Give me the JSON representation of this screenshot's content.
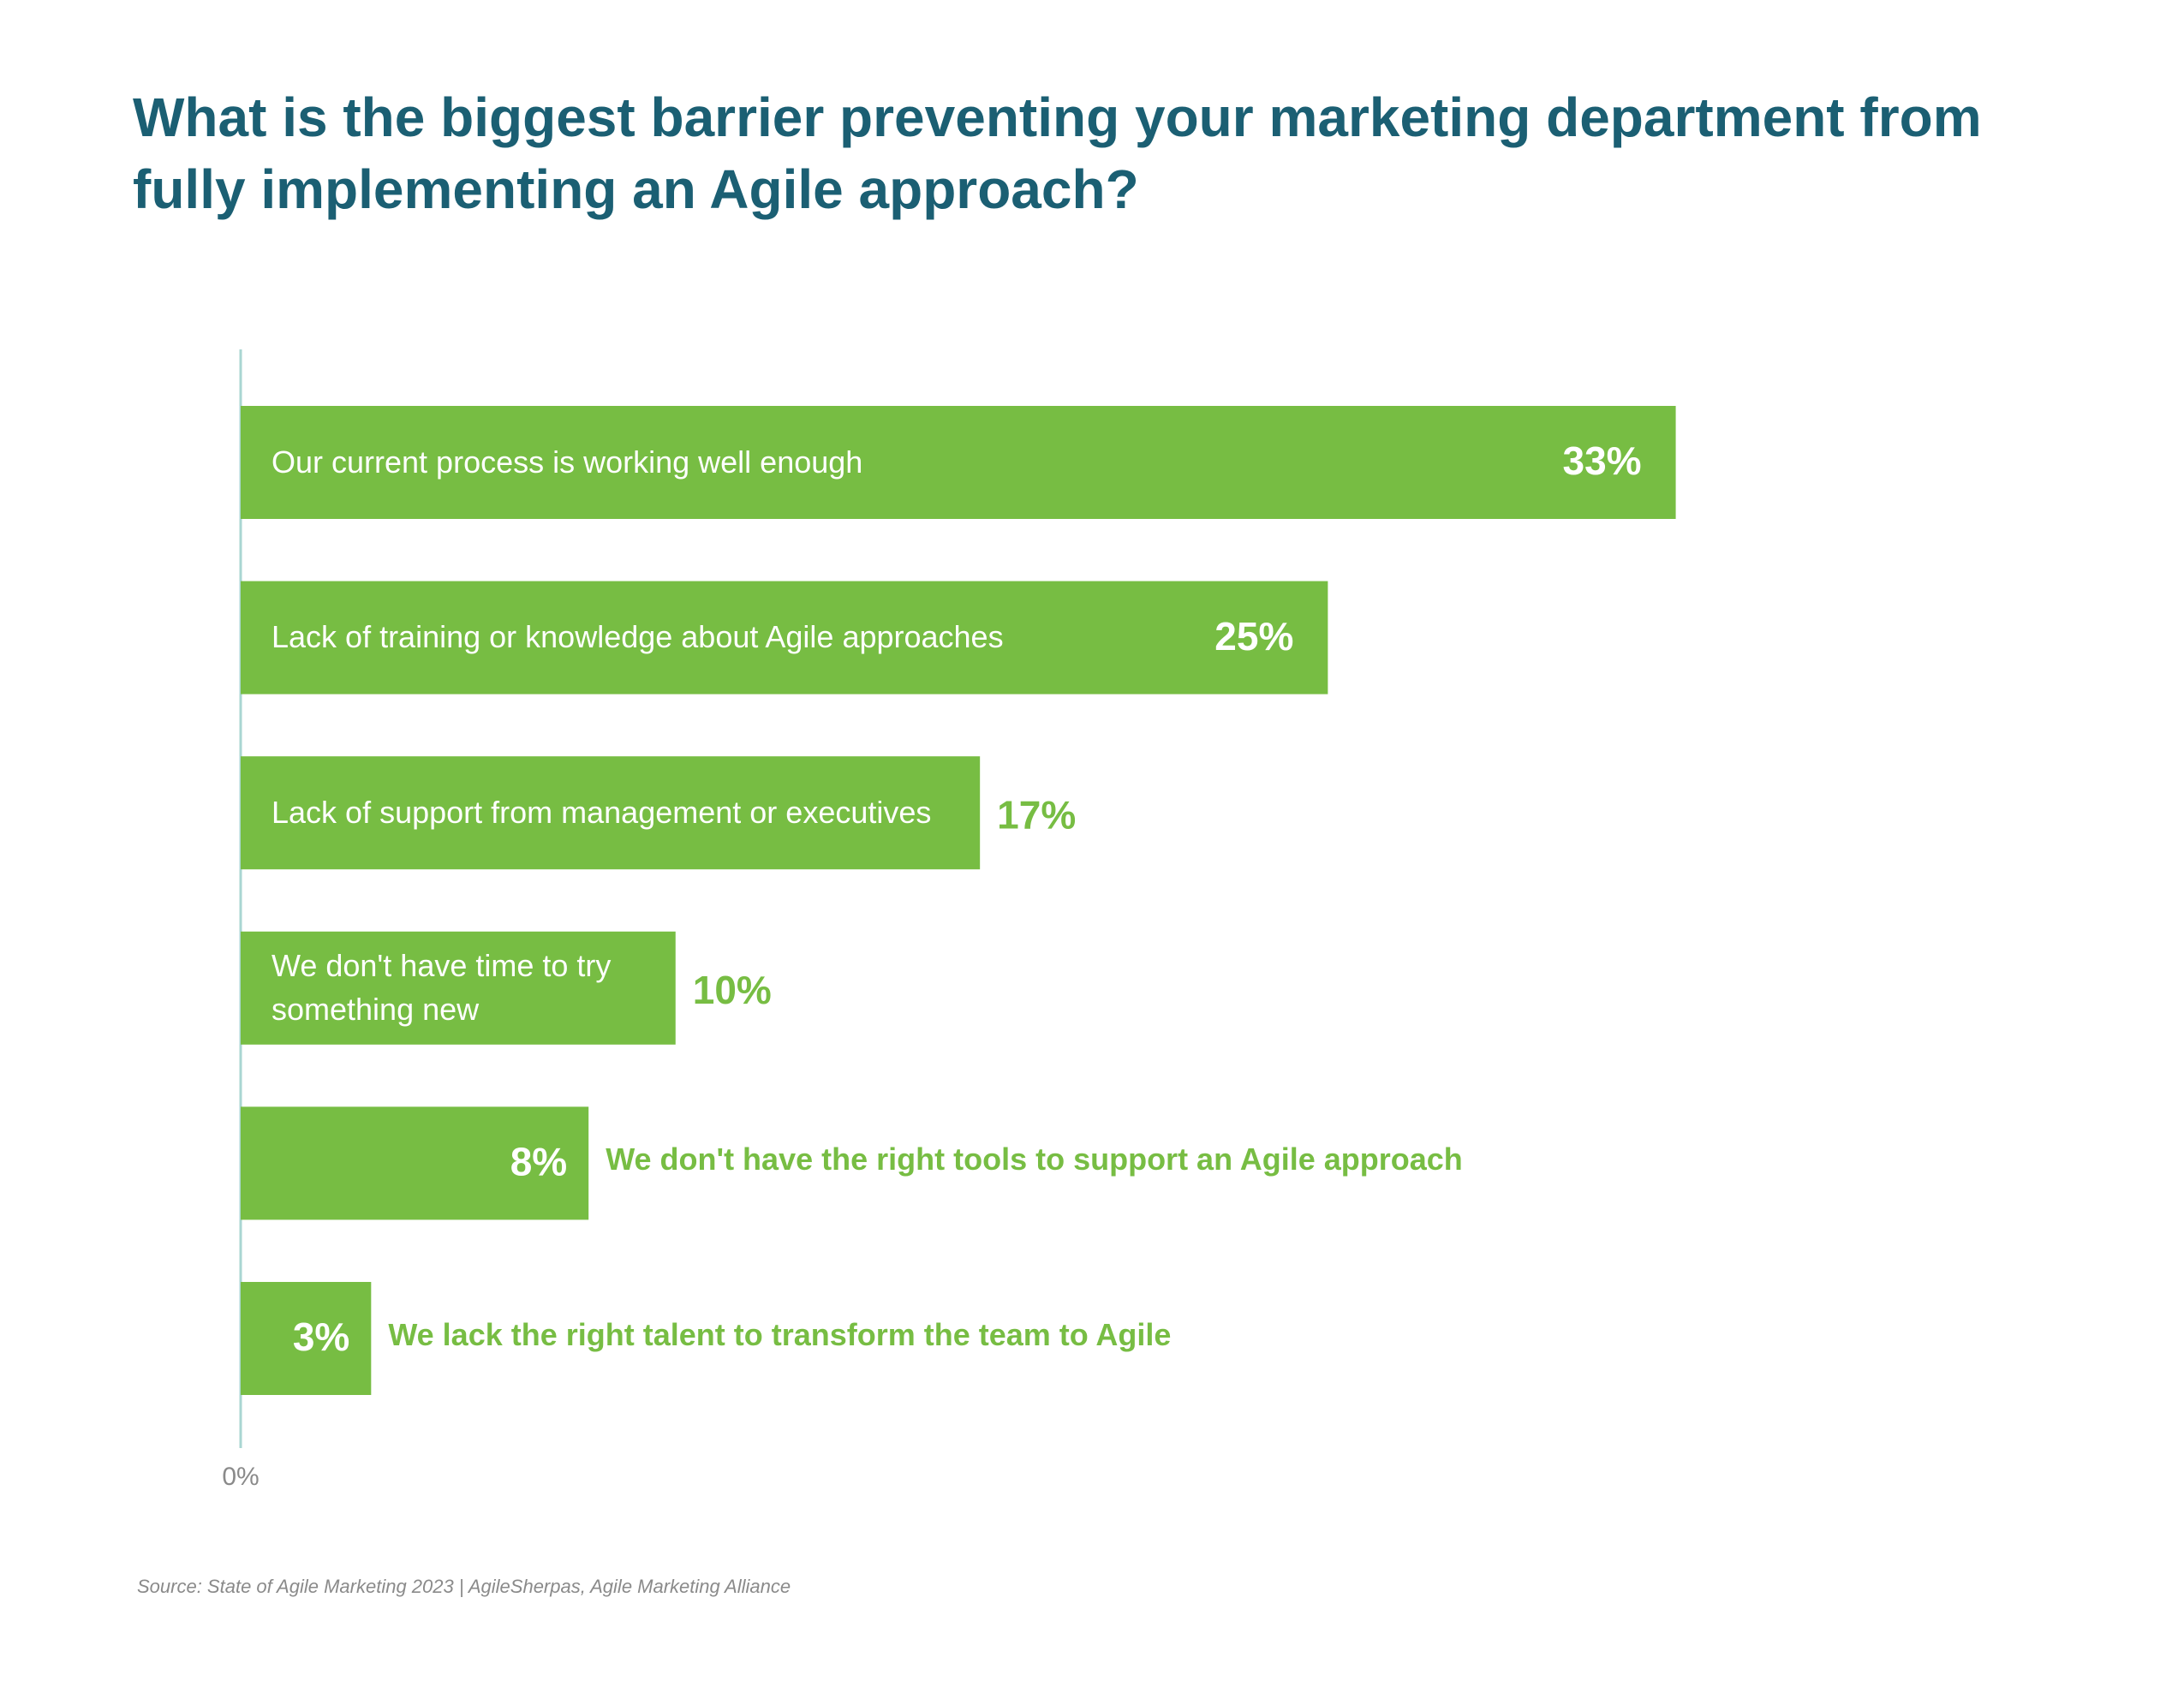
{
  "chart_data": {
    "type": "bar",
    "orientation": "horizontal",
    "title": "What is the biggest barrier preventing your marketing department from fully implementing an Agile approach?",
    "categories": [
      "Our current process is working well enough",
      "Lack of training or knowledge about Agile approaches",
      "Lack of support from management or executives",
      "We don't have time to try something new",
      "We don't have the right tools to support an Agile approach",
      "We lack the right talent to transform the team to Agile"
    ],
    "values": [
      33,
      25,
      17,
      10,
      8,
      3
    ],
    "value_labels": [
      "33%",
      "25%",
      "17%",
      "10%",
      "8%",
      "3%"
    ],
    "color": "#77bd43",
    "xlim": [
      0,
      40
    ],
    "xticks": [
      {
        "value": 0,
        "label": "0%"
      }
    ],
    "source": "Source: State of Agile Marketing 2023 | AgileSherpas, Agile Marketing Alliance"
  }
}
